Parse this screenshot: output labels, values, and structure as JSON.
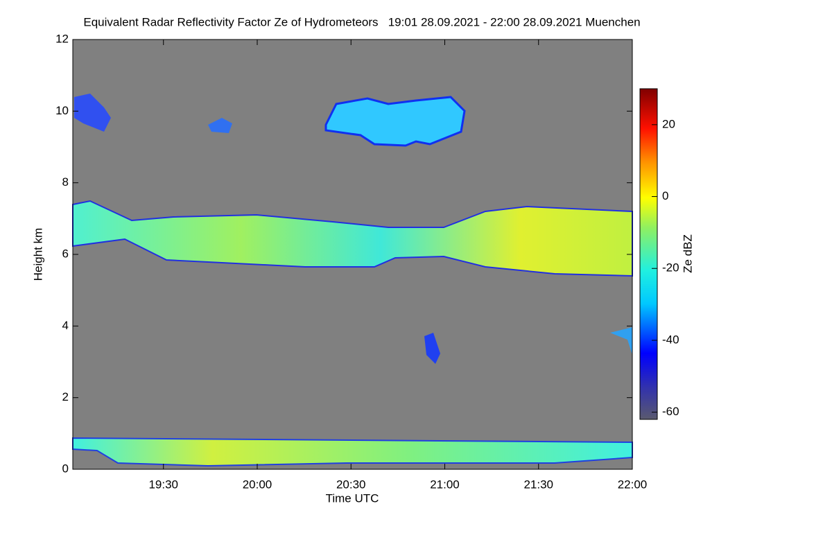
{
  "chart_data": {
    "type": "time-height",
    "title": "Equivalent Radar Reflectivity Factor Ze of Hydrometeors   19:01 28.09.2021 - 22:00 28.09.2021 Muenchen",
    "x_label": "Time UTC",
    "y_label": "Height km",
    "xlim": [
      "19:01",
      "22:00"
    ],
    "xticks": [
      "19:30",
      "20:00",
      "20:30",
      "21:00",
      "21:30",
      "22:00"
    ],
    "ylim": [
      0,
      12
    ],
    "yticks": [
      0,
      2,
      4,
      6,
      8,
      10,
      12
    ],
    "colorbar": {
      "label": "Ze dBZ",
      "lim": [
        -62,
        30
      ],
      "ticks": [
        -60,
        -40,
        -20,
        0,
        20
      ]
    }
  }
}
